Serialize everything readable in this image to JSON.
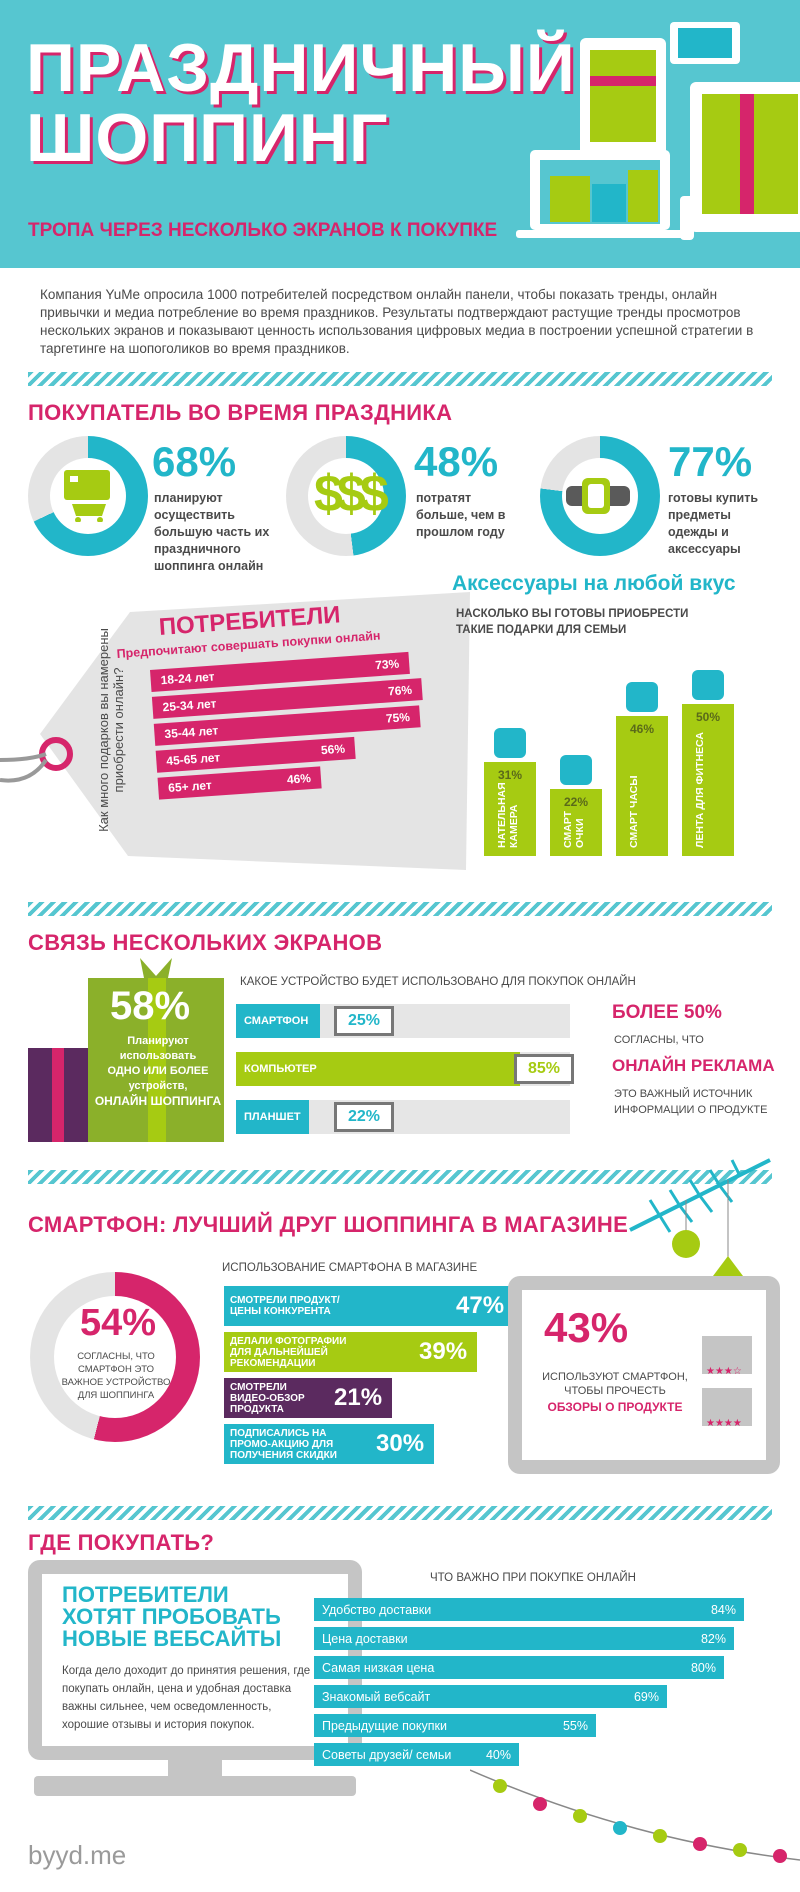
{
  "header": {
    "title_line1": "ПРАЗДНИЧНЫЙ",
    "title_line2": "ШОППИНГ",
    "subtitle": "ТРОПА ЧЕРЕЗ НЕСКОЛЬКО ЭКРАНОВ К ПОКУПКЕ"
  },
  "intro": "Компания YuMe опросила 1000 потребителей посредством онлайн панели, чтобы показать тренды, онлайн привычки и медиа потребление во время праздников. Результаты подтверждают растущие тренды просмотров нескольких экранов и показывают ценность использования цифровых медиа в построении успешной стратегии в таргетинге на шопоголиков во время праздников.",
  "holiday_shopper": {
    "title": "ПОКУПАТЕЛЬ ВО ВРЕМЯ ПРАЗДНИКА",
    "stats": [
      {
        "pct": "68%",
        "value": 68,
        "text": "планируют осуществить большую часть их праздничного шоппинга онлайн",
        "icon": "shopping-cart-icon"
      },
      {
        "pct": "48%",
        "value": 48,
        "text": "потратят больше, чем в прошлом году",
        "icon": "dollar-icon"
      },
      {
        "pct": "77%",
        "value": 77,
        "text": "готовы купить предметы одежды и аксессуары",
        "icon": "smartwatch-icon"
      }
    ]
  },
  "consumers_tag": {
    "title": "ПОТРЕБИТЕЛИ",
    "subtitle": "Предпочитают совершать покупки онлайн",
    "side_text": "Как много подарков вы намерены приобрести онлайн?",
    "rows": [
      {
        "label": "18-24 лет",
        "pct": "73%",
        "value": 73
      },
      {
        "label": "25-34 лет",
        "pct": "76%",
        "value": 76
      },
      {
        "label": "35-44 лет",
        "pct": "75%",
        "value": 75
      },
      {
        "label": "45-65 лет",
        "pct": "56%",
        "value": 56
      },
      {
        "label": "65+ лет",
        "pct": "46%",
        "value": 46
      }
    ]
  },
  "accessories": {
    "title": "Аксессуары на любой вкус",
    "subtitle": "НАСКОЛЬКО ВЫ ГОТОВЫ ПРИОБРЕСТИ ТАКИЕ ПОДАРКИ ДЛЯ СЕМЬИ",
    "bars": [
      {
        "label": "НАТЕЛЬНАЯ КАМЕРА",
        "pct": "31%",
        "value": 31,
        "icon": "camera-icon"
      },
      {
        "label": "СМАРТ ОЧКИ",
        "pct": "22%",
        "value": 22,
        "icon": "glasses-icon"
      },
      {
        "label": "СМАРТ ЧАСЫ",
        "pct": "46%",
        "value": 46,
        "icon": "watch-icon"
      },
      {
        "label": "ЛЕНТА ДЛЯ ФИТНЕСА",
        "pct": "50%",
        "value": 50,
        "icon": "pencil-band-icon"
      }
    ]
  },
  "multiscreen": {
    "title": "СВЯЗЬ НЕСКОЛЬКИХ ЭКРАНОВ",
    "gift_pct": "58%",
    "gift_text1": "Планируют использовать",
    "gift_text2": "ОДНО ИЛИ БОЛЕЕ устройств,",
    "gift_text3": "ОНЛАЙН ШОППИНГА",
    "devices_title": "КАКОЕ УСТРОЙСТВО БУДЕТ ИСПОЛЬЗОВАНО ДЛЯ ПОКУПОК ОНЛАЙН",
    "devices": [
      {
        "label": "СМАРТФОН",
        "pct": "25%",
        "value": 25,
        "color": "#22b6c9"
      },
      {
        "label": "КОМПЬЮТЕР",
        "pct": "85%",
        "value": 85,
        "color": "#a6cb12"
      },
      {
        "label": "ПЛАНШЕТ",
        "pct": "22%",
        "value": 22,
        "color": "#22b6c9"
      }
    ],
    "side_big1": "БОЛЕЕ 50%",
    "side_small1": "СОГЛАСНЫ, ЧТО",
    "side_big2": "ОНЛАЙН РЕКЛАМА",
    "side_small2": "ЭТО ВАЖНЫЙ ИСТОЧНИК ИНФОРМАЦИИ О ПРОДУКТЕ"
  },
  "smartphone": {
    "title": "СМАРТФОН: ЛУЧШИЙ ДРУГ ШОППИНГА В МАГАЗИНЕ",
    "donut_pct": "54%",
    "donut_value": 54,
    "donut_text": "СОГЛАСНЫ, ЧТО СМАРТФОН ЭТО ВАЖНОЕ УСТРОЙСТВО ДЛЯ ШОППИНГА",
    "usage_title": "ИСПОЛЬЗОВАНИЕ СМАРТФОНА В МАГАЗИНЕ",
    "usage": [
      {
        "label": "СМОТРЕЛИ ПРОДУКТ/ ЦЕНЫ КОНКУРЕНТА",
        "pct": "47%",
        "value": 47,
        "color": "#22b6c9"
      },
      {
        "label": "ДЕЛАЛИ ФОТОГРАФИИ ДЛЯ ДАЛЬНЕЙШЕЙ РЕКОМЕНДАЦИИ",
        "pct": "39%",
        "value": 39,
        "color": "#a6cb12"
      },
      {
        "label": "СМОТРЕЛИ ВИДЕО-ОБЗОР ПРОДУКТА",
        "pct": "21%",
        "value": 21,
        "color": "#5b2a5f"
      },
      {
        "label": "ПОДПИСАЛИСЬ НА ПРОМО-АКЦИЮ ДЛЯ ПОЛУЧЕНИЯ СКИДКИ",
        "pct": "30%",
        "value": 30,
        "color": "#22b6c9"
      }
    ],
    "tablet_pct": "43%",
    "tablet_text": "ИСПОЛЬЗУЮТ СМАРТФОН, ЧТОБЫ ПРОЧЕСТЬ",
    "tablet_text2": "ОБЗОРЫ О ПРОДУКТЕ",
    "stars1": "★★★☆",
    "stars2": "★★★★"
  },
  "where": {
    "title": "ГДЕ ПОКУПАТЬ?",
    "monitor_title": "ПОТРЕБИТЕЛИ ХОТЯТ ПРОБОВАТЬ НОВЫЕ ВЕБСАЙТЫ",
    "monitor_text": "Когда дело доходит до принятия решения, где покупать онлайн, цена и удобная доставка важны сильнее, чем осведомленность, хорошие отзывы и история покупок.",
    "chart_title": "ЧТО ВАЖНО ПРИ ПОКУПКЕ ОНЛАЙН",
    "rows": [
      {
        "label": "Удобство доставки",
        "pct": "84%",
        "value": 84
      },
      {
        "label": "Цена доставки",
        "pct": "82%",
        "value": 82
      },
      {
        "label": "Самая низкая цена",
        "pct": "80%",
        "value": 80
      },
      {
        "label": "Знакомый вебсайт",
        "pct": "69%",
        "value": 69
      },
      {
        "label": "Предыдущие покупки",
        "pct": "55%",
        "value": 55
      },
      {
        "label": "Советы друзей/ семьи",
        "pct": "40%",
        "value": 40
      }
    ]
  },
  "footer": {
    "logo": "byyd.me"
  },
  "colors": {
    "pink": "#d6256b",
    "teal": "#22b6c9",
    "lime": "#a6cb12",
    "purple": "#5b2a5f",
    "header_bg": "#56c6d0"
  },
  "chart_data": [
    {
      "type": "bar",
      "title": "ПОТРЕБИТЕЛИ",
      "categories": [
        "18-24 лет",
        "25-34 лет",
        "35-44 лет",
        "45-65 лет",
        "65+ лет"
      ],
      "values": [
        73,
        76,
        75,
        56,
        46
      ]
    },
    {
      "type": "bar",
      "title": "Аксессуары на любой вкус",
      "categories": [
        "НАТЕЛЬНАЯ КАМЕРА",
        "СМАРТ ОЧКИ",
        "СМАРТ ЧАСЫ",
        "ЛЕНТА ДЛЯ ФИТНЕСА"
      ],
      "values": [
        31,
        22,
        46,
        50
      ]
    },
    {
      "type": "bar",
      "title": "КАКОЕ УСТРОЙСТВО БУДЕТ ИСПОЛЬЗОВАНО ДЛЯ ПОКУПОК ОНЛАЙН",
      "categories": [
        "СМАРТФОН",
        "КОМПЬЮТЕР",
        "ПЛАНШЕТ"
      ],
      "values": [
        25,
        85,
        22
      ]
    },
    {
      "type": "bar",
      "title": "ИСПОЛЬЗОВАНИЕ СМАРТФОНА В МАГАЗИНЕ",
      "categories": [
        "СМОТРЕЛИ ПРОДУКТ/ ЦЕНЫ КОНКУРЕНТА",
        "ДЕЛАЛИ ФОТОГРАФИИ ДЛЯ ДАЛЬНЕЙШЕЙ РЕКОМЕНДАЦИИ",
        "СМОТРЕЛИ ВИДЕО-ОБЗОР ПРОДУКТА",
        "ПОДПИСАЛИСЬ НА ПРОМО-АКЦИЮ ДЛЯ ПОЛУЧЕНИЯ СКИДКИ"
      ],
      "values": [
        47,
        39,
        21,
        30
      ]
    },
    {
      "type": "bar",
      "title": "ЧТО ВАЖНО ПРИ ПОКУПКЕ ОНЛАЙН",
      "categories": [
        "Удобство доставки",
        "Цена доставки",
        "Самая низкая цена",
        "Знакомый вебсайт",
        "Предыдущие покупки",
        "Советы друзей/ семьи"
      ],
      "values": [
        84,
        82,
        80,
        69,
        55,
        40
      ]
    }
  ]
}
